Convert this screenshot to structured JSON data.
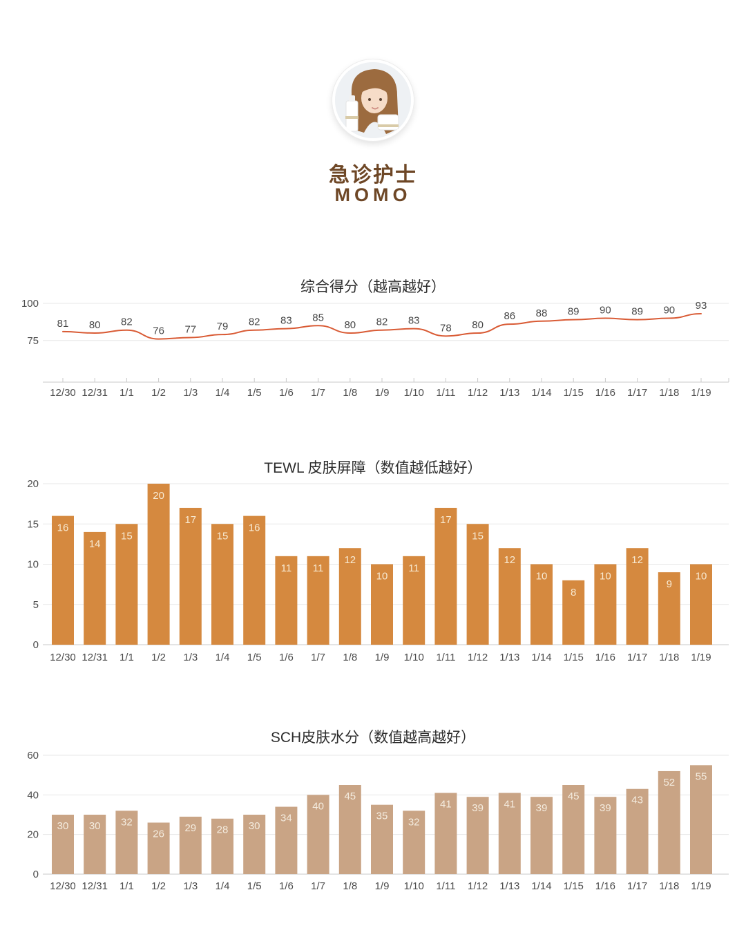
{
  "profile": {
    "role": "急诊护士",
    "name": "MOMO",
    "avatar": "portrait-photo-of-nurse-momo-holding-skincare-bottles"
  },
  "theme": {
    "heading_brown": "#6e4726",
    "line_color": "#d95b35",
    "bar_orange": "#d5893f",
    "bar_tan": "#c9a485",
    "bar_label_orange": "#f8ead2",
    "bar_label_tan": "#f4ecdf",
    "point_label": "#474747",
    "axis_text": "#4c4c4c",
    "grid_line": "#e7e7e7",
    "axis_line": "#c9c9c9"
  },
  "chart_data": [
    {
      "id": "composite-score",
      "type": "line",
      "title": "综合得分（越高越好）",
      "xlabel": "",
      "ylabel": "",
      "categories": [
        "12/30",
        "12/31",
        "1/1",
        "1/2",
        "1/3",
        "1/4",
        "1/5",
        "1/6",
        "1/7",
        "1/8",
        "1/9",
        "1/10",
        "1/11",
        "1/12",
        "1/13",
        "1/14",
        "1/15",
        "1/16",
        "1/17",
        "1/18",
        "1/19"
      ],
      "values": [
        81,
        80,
        82,
        76,
        77,
        79,
        82,
        83,
        85,
        80,
        82,
        83,
        78,
        80,
        86,
        88,
        89,
        90,
        89,
        90,
        93
      ],
      "yticks": [
        75,
        100
      ],
      "ylim": [
        47,
        100
      ],
      "grid": true,
      "legend": "none",
      "data_labels": true
    },
    {
      "id": "tewl-skin-barrier",
      "type": "bar",
      "title": "TEWL 皮肤屏障（数值越低越好）",
      "xlabel": "",
      "ylabel": "",
      "categories": [
        "12/30",
        "12/31",
        "1/1",
        "1/2",
        "1/3",
        "1/4",
        "1/5",
        "1/6",
        "1/7",
        "1/8",
        "1/9",
        "1/10",
        "1/11",
        "1/12",
        "1/13",
        "1/14",
        "1/15",
        "1/16",
        "1/17",
        "1/18",
        "1/19"
      ],
      "values": [
        16,
        14,
        15,
        20,
        17,
        15,
        16,
        11,
        11,
        12,
        10,
        11,
        17,
        15,
        12,
        10,
        8,
        10,
        12,
        9,
        10
      ],
      "yticks": [
        0,
        5,
        10,
        15,
        20
      ],
      "ylim": [
        0,
        20
      ],
      "grid": true,
      "legend": "none",
      "data_labels": true
    },
    {
      "id": "sch-skin-moisture",
      "type": "bar",
      "title": "SCH皮肤水分（数值越高越好）",
      "xlabel": "",
      "ylabel": "",
      "categories": [
        "12/30",
        "12/31",
        "1/1",
        "1/2",
        "1/3",
        "1/4",
        "1/5",
        "1/6",
        "1/7",
        "1/8",
        "1/9",
        "1/10",
        "1/11",
        "1/12",
        "1/13",
        "1/14",
        "1/15",
        "1/16",
        "1/17",
        "1/18",
        "1/19"
      ],
      "values": [
        30,
        30,
        32,
        26,
        29,
        28,
        30,
        34,
        40,
        45,
        35,
        32,
        41,
        39,
        41,
        39,
        45,
        39,
        43,
        52,
        55
      ],
      "yticks": [
        0,
        20,
        40,
        60
      ],
      "ylim": [
        0,
        60
      ],
      "grid": true,
      "legend": "none",
      "data_labels": true
    }
  ]
}
